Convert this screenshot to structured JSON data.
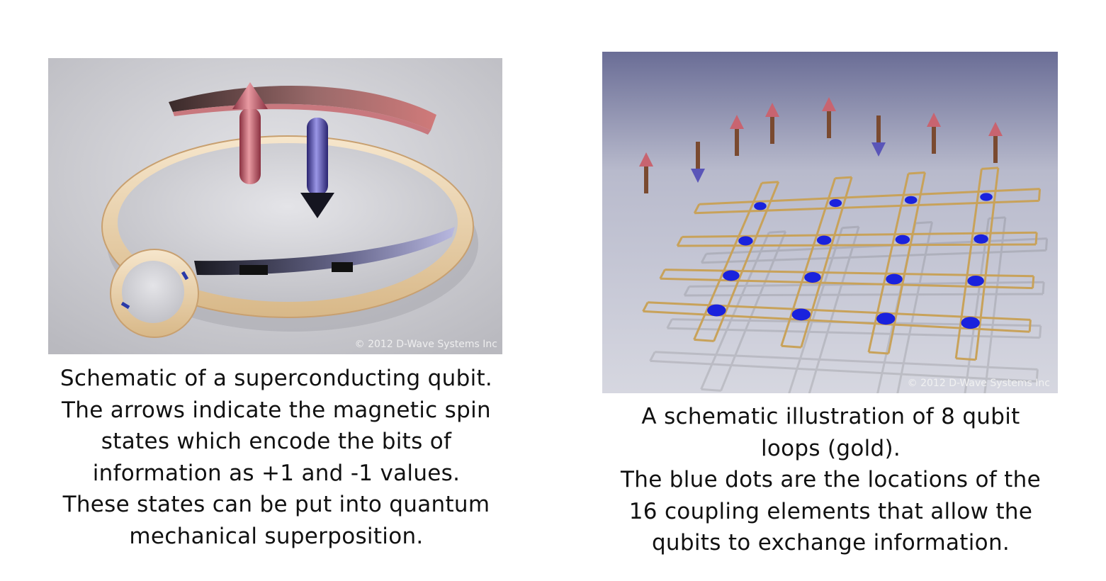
{
  "left": {
    "copyright": "© 2012 D-Wave Systems Inc",
    "caption_lines": [
      "Schematic of a superconducting qubit.",
      "The arrows indicate the magnetic spin",
      "states which encode the bits of",
      "information as +1 and -1 values.",
      "These states can be put into quantum",
      "mechanical superposition."
    ]
  },
  "right": {
    "copyright": "© 2012 D-Wave Systems Inc",
    "caption_lines": [
      "A schematic illustration of 8 qubit",
      "loops (gold).",
      "The blue dots are the locations of the",
      "16 coupling elements that allow the",
      "qubits to exchange information."
    ]
  },
  "colors": {
    "ring": "#e9cfa6",
    "up_arrow": "#c86470",
    "down_arrow": "#5a55b8",
    "gold_loop": "#c8a25a",
    "coupler": "#1a22dd"
  }
}
